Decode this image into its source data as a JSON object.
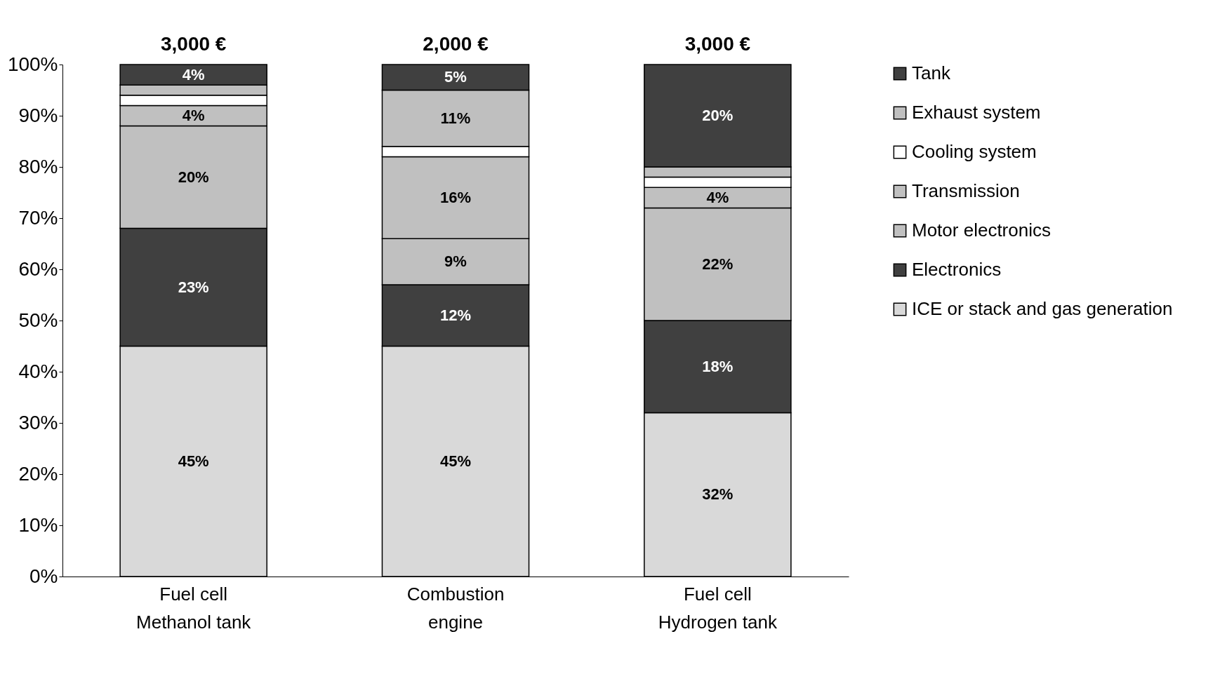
{
  "chart_data": {
    "type": "bar",
    "stacked": true,
    "categories": [
      "Fuel cell\nMethanol tank",
      "Combustion\nengine",
      "Fuel cell\nHydrogen tank"
    ],
    "series": [
      {
        "name": "ICE or stack and gas generation",
        "color": "#d9d9d9",
        "values": [
          45,
          45,
          32
        ],
        "value_labels": [
          "45%",
          "45%",
          "32%"
        ]
      },
      {
        "name": "Electronics",
        "color": "#404040",
        "values": [
          23,
          12,
          18
        ],
        "value_labels": [
          "23%",
          "12%",
          "18%"
        ]
      },
      {
        "name": "Motor electronics",
        "color": "#c0c0c0",
        "values": [
          20,
          9,
          22
        ],
        "value_labels": [
          "20%",
          "9%",
          "22%"
        ]
      },
      {
        "name": "Transmission",
        "color": "#c0c0c0",
        "values": [
          4,
          16,
          4
        ],
        "value_labels": [
          "4%",
          "16%",
          "4%"
        ]
      },
      {
        "name": "Cooling system",
        "color": "#ffffff",
        "values": [
          2,
          2,
          2
        ],
        "value_labels": [
          null,
          null,
          null
        ]
      },
      {
        "name": "Exhaust system",
        "color": "#bfbfbf",
        "values": [
          2,
          11,
          2
        ],
        "value_labels": [
          null,
          "11%",
          null
        ]
      },
      {
        "name": "Tank",
        "color": "#404040",
        "values": [
          4,
          5,
          20
        ],
        "value_labels": [
          "4%",
          "5%",
          "20%"
        ]
      }
    ],
    "annotations": [
      {
        "text": "3,000 €",
        "x": "Fuel cell\nMethanol tank",
        "y": 100
      },
      {
        "text": "2,000 €",
        "x": "Combustion\nengine",
        "y": 100
      },
      {
        "text": "3,000 €",
        "x": "Fuel cell\nHydrogen tank",
        "y": 100
      }
    ],
    "ylim": [
      0,
      100
    ],
    "yticks": [
      {
        "value": 0,
        "label": "0%"
      },
      {
        "value": 10,
        "label": "10%"
      },
      {
        "value": 20,
        "label": "20%"
      },
      {
        "value": 30,
        "label": "30%"
      },
      {
        "value": 40,
        "label": "40%"
      },
      {
        "value": 50,
        "label": "50%"
      },
      {
        "value": 60,
        "label": "60%"
      },
      {
        "value": 70,
        "label": "70%"
      },
      {
        "value": 80,
        "label": "80%"
      },
      {
        "value": 90,
        "label": "90%"
      },
      {
        "value": 100,
        "label": "100%"
      }
    ],
    "grid": false,
    "legend": "right"
  }
}
